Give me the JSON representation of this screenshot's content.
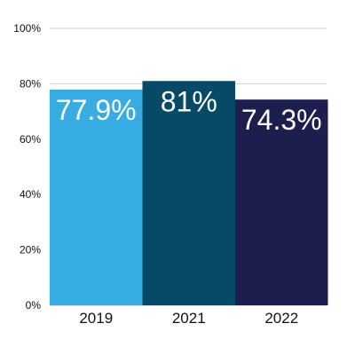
{
  "chart_data": {
    "type": "bar",
    "categories": [
      "2019",
      "2021",
      "2022"
    ],
    "values": [
      77.9,
      81,
      74.3
    ],
    "data_labels": [
      "77.9%",
      "81%",
      "74.3%"
    ],
    "y_ticks": [
      0,
      20,
      40,
      60,
      80,
      100
    ],
    "y_tick_labels": [
      "0%",
      "20%",
      "40%",
      "60%",
      "80%",
      "100%"
    ],
    "ylim": [
      0,
      100
    ],
    "grid": true,
    "colors": [
      "#36ace2",
      "#064a68",
      "#1d1d4e"
    ]
  }
}
